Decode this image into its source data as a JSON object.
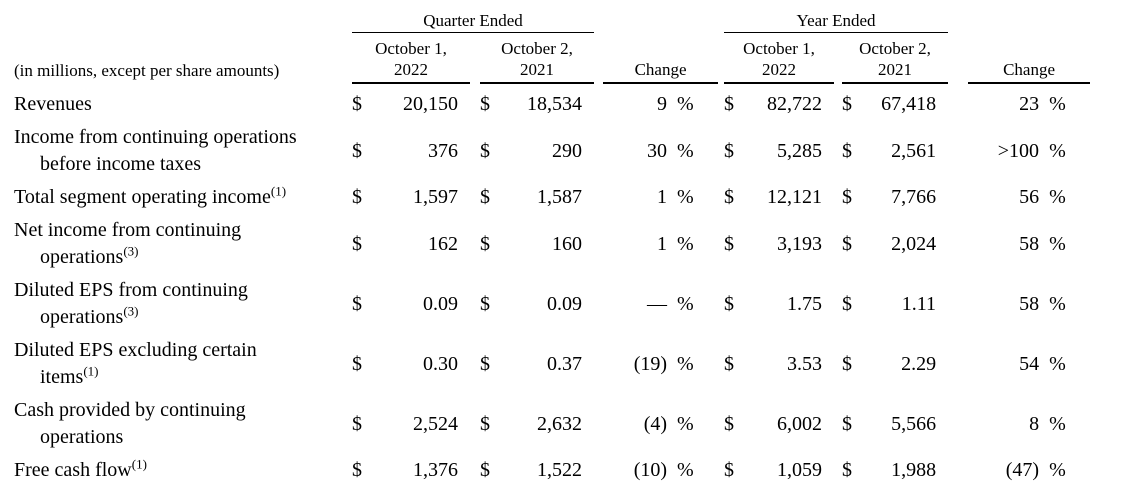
{
  "currency_symbol": "$",
  "percent_symbol": "%",
  "header": {
    "note": "(in millions, except per share amounts)",
    "quarter": {
      "group_label": "Quarter Ended",
      "col_2022": [
        "October 1,",
        "2022"
      ],
      "col_2021": [
        "October 2,",
        "2021"
      ],
      "change_label": "Change"
    },
    "year": {
      "group_label": "Year Ended",
      "col_2022": [
        "October 1,",
        "2022"
      ],
      "col_2021": [
        "October 2,",
        "2021"
      ],
      "change_label": "Change"
    }
  },
  "rows": [
    {
      "label_lines": [
        "Revenues"
      ],
      "sup": "",
      "quarter": {
        "v2022": "20,150",
        "v2021": "18,534",
        "change": "9"
      },
      "year": {
        "v2022": "82,722",
        "v2021": "67,418",
        "change": "23"
      }
    },
    {
      "label_lines": [
        "Income from continuing operations",
        "before income taxes"
      ],
      "sup": "",
      "quarter": {
        "v2022": "376",
        "v2021": "290",
        "change": "30"
      },
      "year": {
        "v2022": "5,285",
        "v2021": "2,561",
        "change": ">100"
      }
    },
    {
      "label_lines": [
        "Total segment operating income"
      ],
      "sup": "(1)",
      "quarter": {
        "v2022": "1,597",
        "v2021": "1,587",
        "change": "1"
      },
      "year": {
        "v2022": "12,121",
        "v2021": "7,766",
        "change": "56"
      }
    },
    {
      "label_lines": [
        "Net income from continuing",
        "operations"
      ],
      "sup": "(3)",
      "quarter": {
        "v2022": "162",
        "v2021": "160",
        "change": "1"
      },
      "year": {
        "v2022": "3,193",
        "v2021": "2,024",
        "change": "58"
      }
    },
    {
      "label_lines": [
        "Diluted EPS from continuing",
        "operations"
      ],
      "sup": "(3)",
      "quarter": {
        "v2022": "0.09",
        "v2021": "0.09",
        "change": "—"
      },
      "year": {
        "v2022": "1.75",
        "v2021": "1.11",
        "change": "58"
      }
    },
    {
      "label_lines": [
        "Diluted EPS excluding certain",
        "items"
      ],
      "sup": "(1)",
      "quarter": {
        "v2022": "0.30",
        "v2021": "0.37",
        "change": "(19)"
      },
      "year": {
        "v2022": "3.53",
        "v2021": "2.29",
        "change": "54"
      }
    },
    {
      "label_lines": [
        "Cash provided by continuing",
        "operations"
      ],
      "sup": "",
      "quarter": {
        "v2022": "2,524",
        "v2021": "2,632",
        "change": "(4)"
      },
      "year": {
        "v2022": "6,002",
        "v2021": "5,566",
        "change": "8"
      }
    },
    {
      "label_lines": [
        "Free cash flow"
      ],
      "sup": "(1)",
      "quarter": {
        "v2022": "1,376",
        "v2021": "1,522",
        "change": "(10)"
      },
      "year": {
        "v2022": "1,059",
        "v2021": "1,988",
        "change": "(47)"
      }
    }
  ]
}
